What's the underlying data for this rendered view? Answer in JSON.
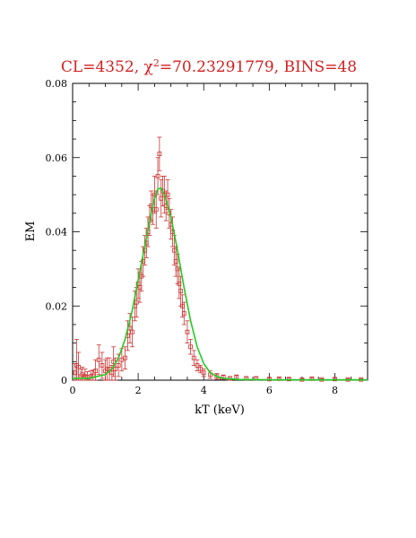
{
  "chart_data": {
    "type": "scatter",
    "title_prefix": "CL=4352, ",
    "title_chi": "χ",
    "title_sup": "2",
    "title_suffix": "=70.23291779, BINS=48",
    "xlabel": "kT (keV)",
    "ylabel": "EM",
    "xlim": [
      0,
      9
    ],
    "ylim": [
      0,
      0.08
    ],
    "x_ticks": [
      0,
      2,
      4,
      6,
      8
    ],
    "x_tick_labels": [
      "0",
      "2",
      "4",
      "6",
      "8"
    ],
    "y_ticks": [
      0,
      0.02,
      0.04,
      0.06,
      0.08
    ],
    "y_tick_labels": [
      "0",
      "0.02",
      "0.04",
      "0.06",
      "0.08"
    ],
    "grid": false,
    "colors": {
      "data": "#cc3333",
      "model": "#22cc22",
      "title": "#d42020"
    },
    "series": [
      {
        "kind": "points",
        "x": [
          0.08,
          0.12,
          0.18,
          0.25,
          0.3,
          0.38,
          0.45,
          0.55,
          0.62,
          0.7,
          0.8,
          0.9,
          1.0,
          1.05,
          1.12,
          1.2,
          1.25,
          1.3,
          1.4,
          1.5,
          1.6,
          1.68,
          1.75,
          1.82,
          1.9,
          1.95,
          2.0,
          2.05,
          2.1,
          2.15,
          2.2,
          2.25,
          2.3,
          2.35,
          2.4,
          2.45,
          2.5,
          2.55,
          2.6,
          2.65,
          2.7,
          2.75,
          2.8,
          2.85,
          2.9,
          2.95,
          3.0,
          3.05,
          3.1,
          3.15,
          3.2,
          3.25,
          3.3,
          3.35,
          3.4,
          3.5,
          3.6,
          3.7,
          3.8,
          3.9,
          4.0,
          4.2,
          4.4,
          4.6,
          4.8,
          5.0,
          5.3,
          5.6,
          6.0,
          6.3,
          6.6,
          7.0,
          7.3,
          7.6,
          8.0,
          8.4,
          8.8
        ],
        "y": [
          0.002,
          0.004,
          0.0035,
          0.001,
          0.0015,
          0.001,
          0.0008,
          0.001,
          0.0012,
          0.0025,
          0.0055,
          0.004,
          0.0025,
          0.003,
          0.003,
          0.002,
          0.005,
          0.003,
          0.004,
          0.0055,
          0.006,
          0.012,
          0.014,
          0.013,
          0.02,
          0.021,
          0.026,
          0.025,
          0.028,
          0.032,
          0.035,
          0.037,
          0.04,
          0.043,
          0.047,
          0.046,
          0.05,
          0.046,
          0.055,
          0.061,
          0.049,
          0.051,
          0.05,
          0.047,
          0.05,
          0.045,
          0.042,
          0.04,
          0.035,
          0.032,
          0.03,
          0.026,
          0.024,
          0.02,
          0.018,
          0.013,
          0.009,
          0.006,
          0.004,
          0.003,
          0.002,
          0.0015,
          0.001,
          0.0008,
          0.0005,
          0.0008,
          0.0005,
          0.0005,
          0.0003,
          0.0004,
          0.0003,
          0.0002,
          0.0004,
          0.0002,
          0.0003,
          0.0002,
          0.0002
        ],
        "err": [
          0.0025,
          0.007,
          0.004,
          0.002,
          0.002,
          0.002,
          0.0015,
          0.0015,
          0.0015,
          0.003,
          0.004,
          0.0035,
          0.003,
          0.003,
          0.003,
          0.002,
          0.004,
          0.003,
          0.003,
          0.003,
          0.003,
          0.004,
          0.004,
          0.004,
          0.004,
          0.004,
          0.004,
          0.004,
          0.004,
          0.004,
          0.004,
          0.004,
          0.004,
          0.004,
          0.004,
          0.004,
          0.005,
          0.005,
          0.005,
          0.0045,
          0.005,
          0.004,
          0.005,
          0.004,
          0.004,
          0.004,
          0.004,
          0.004,
          0.004,
          0.004,
          0.004,
          0.004,
          0.004,
          0.003,
          0.003,
          0.003,
          0.002,
          0.002,
          0.0015,
          0.001,
          0.001,
          0.001,
          0.0008,
          0.0006,
          0.0005,
          0.0006,
          0.0004,
          0.0004,
          0.0003,
          0.0003,
          0.0003,
          0.0002,
          0.0003,
          0.0002,
          0.0002,
          0.0002,
          0.0002
        ]
      },
      {
        "kind": "line",
        "x": [
          0,
          0.5,
          1.0,
          1.2,
          1.4,
          1.6,
          1.8,
          2.0,
          2.2,
          2.4,
          2.5,
          2.6,
          2.7,
          2.8,
          3.0,
          3.2,
          3.4,
          3.6,
          3.8,
          4.0,
          4.2,
          4.4,
          4.6,
          5.0,
          6.0,
          7.0,
          8.0,
          9.0
        ],
        "y": [
          0.0005,
          0.0005,
          0.0015,
          0.003,
          0.006,
          0.011,
          0.018,
          0.027,
          0.036,
          0.045,
          0.049,
          0.0515,
          0.0518,
          0.05,
          0.044,
          0.035,
          0.025,
          0.016,
          0.009,
          0.0045,
          0.002,
          0.001,
          0.0005,
          0.0002,
          0.0001,
          0.0001,
          0.0001,
          0.0001
        ]
      }
    ]
  }
}
